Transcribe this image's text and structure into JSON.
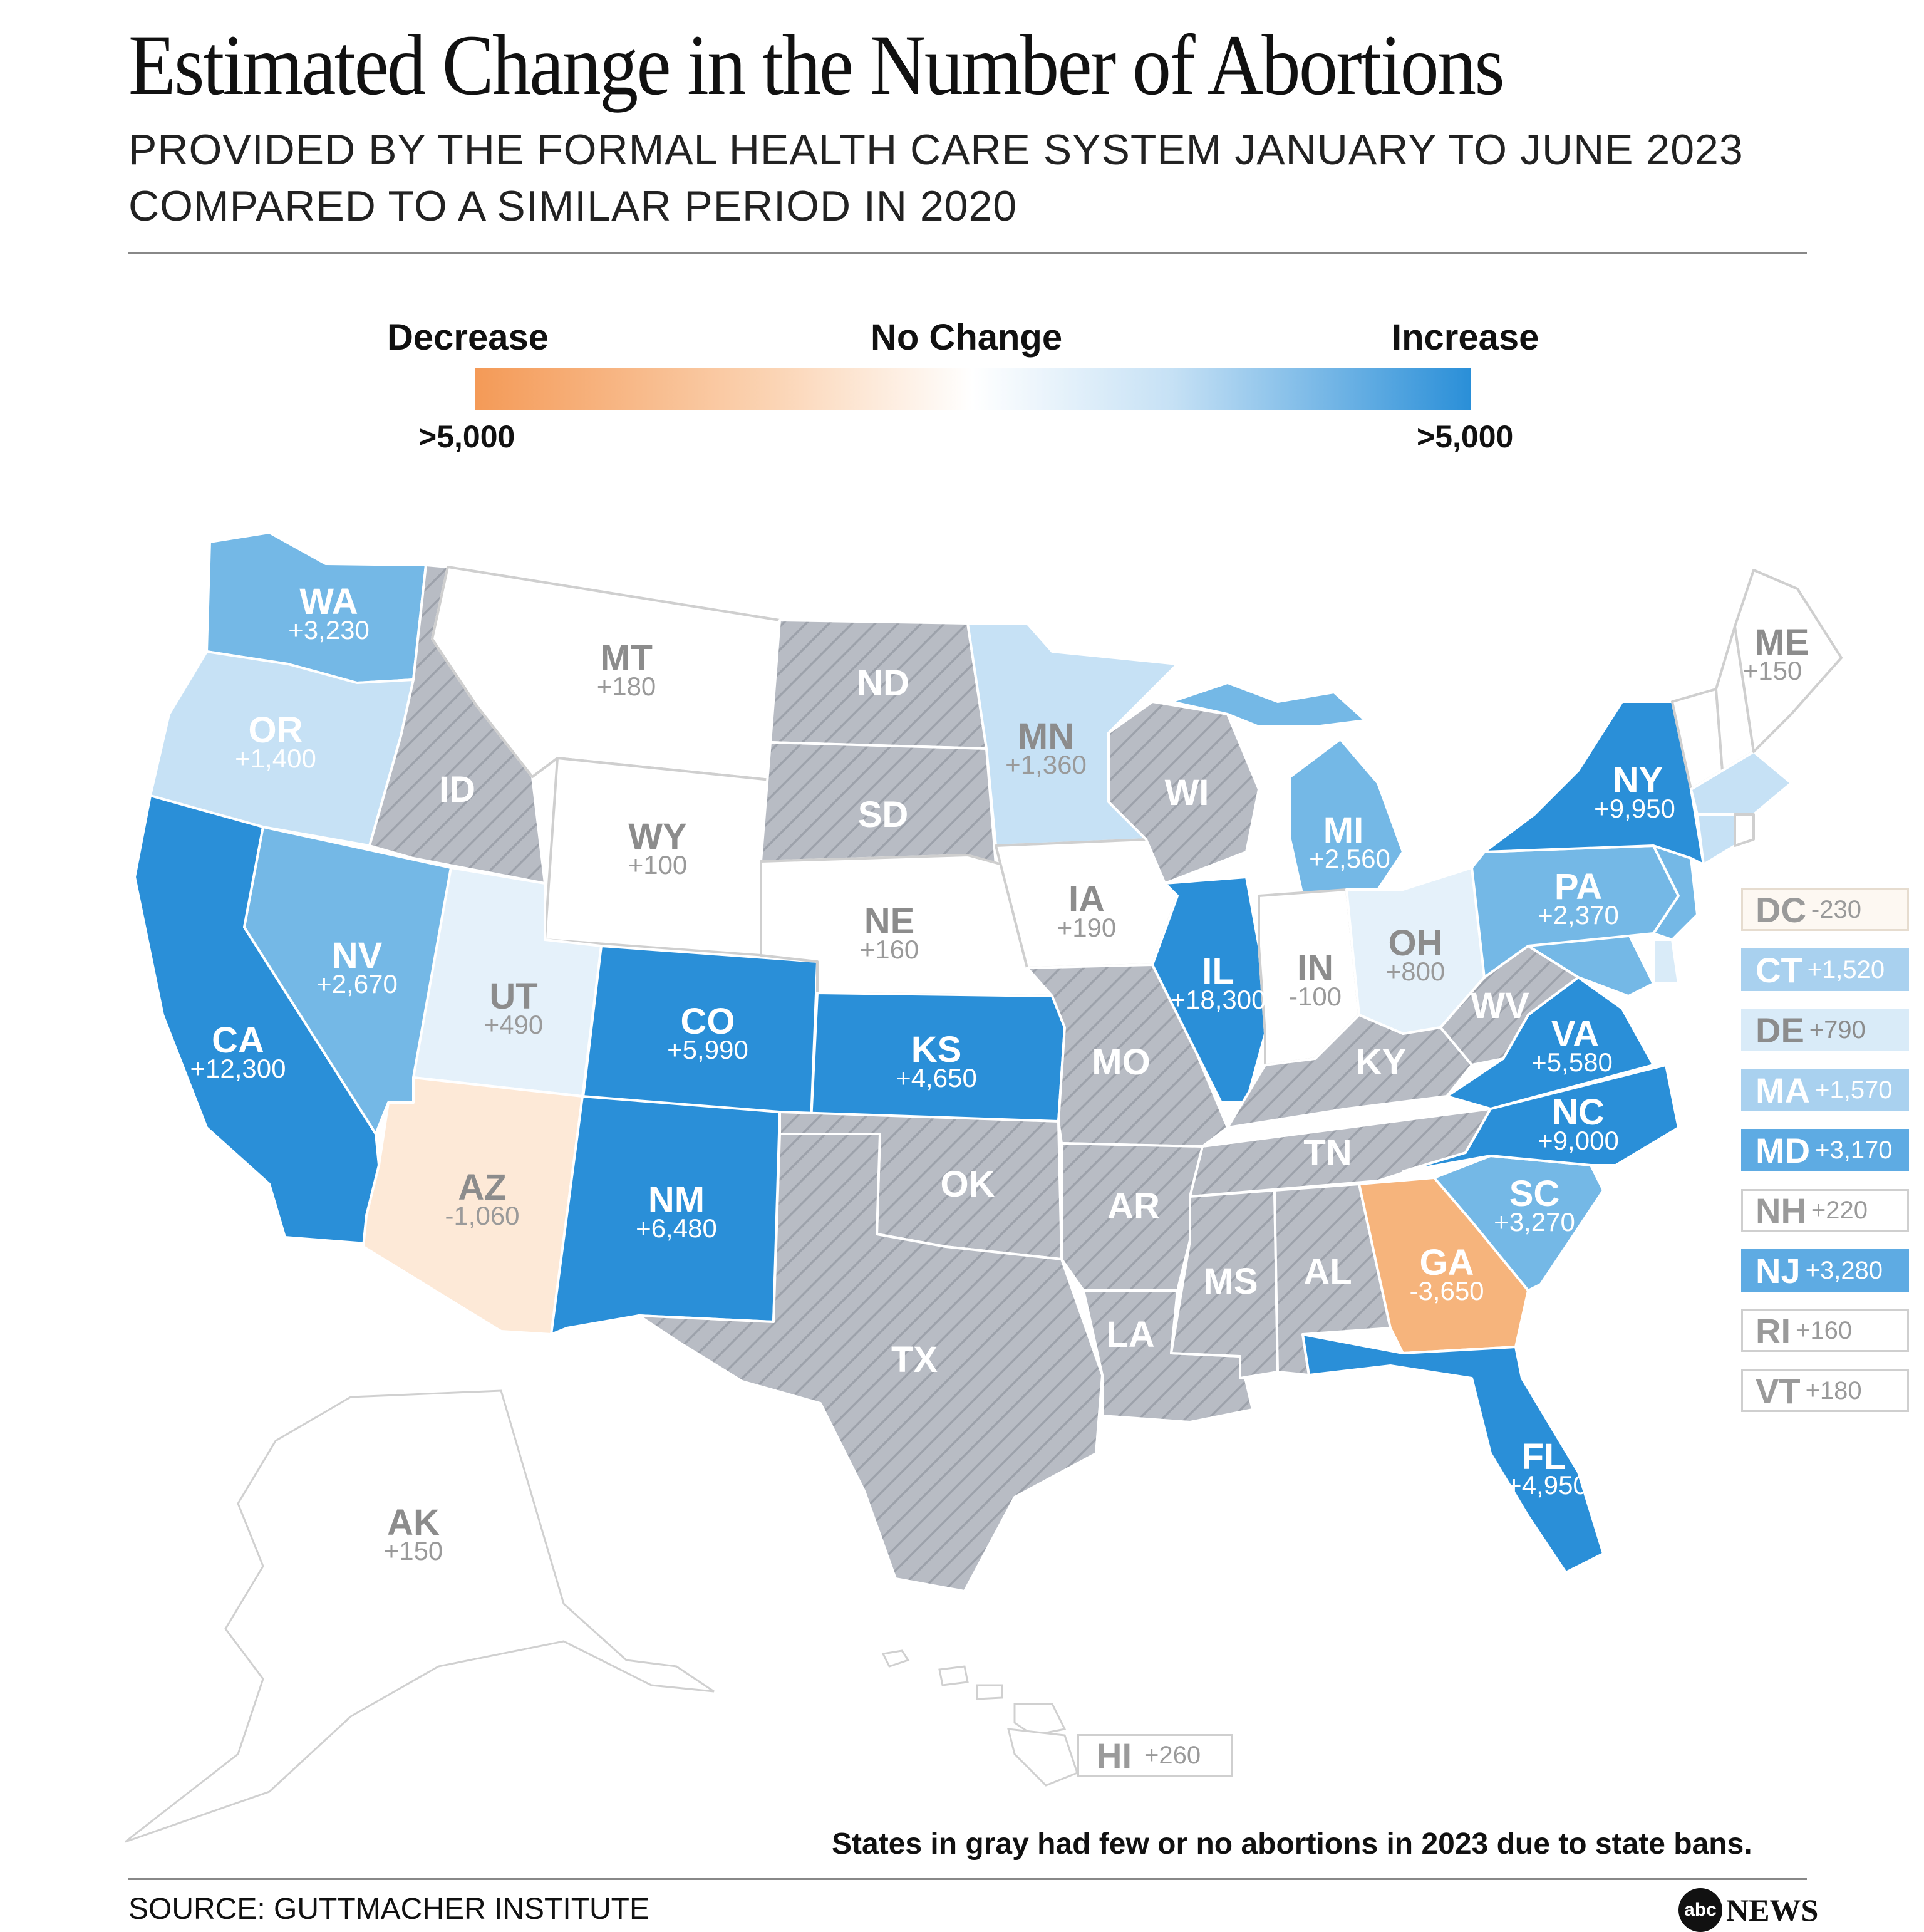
{
  "title": "Estimated Change in the Number of Abortions",
  "subtitle_line1": "PROVIDED BY THE FORMAL HEALTH CARE SYSTEM JANUARY TO JUNE 2023",
  "subtitle_line2": "COMPARED TO A SIMILAR PERIOD IN 2020",
  "legend": {
    "decrease": "Decrease",
    "no_change": "No Change",
    "increase": "Increase",
    "min_label": ">5,000",
    "max_label": ">5,000",
    "color_decrease": "#f49a57",
    "color_none": "#ffffff",
    "color_increase": "#2a8fd8"
  },
  "colors": {
    "ban_gray": "#b8bcc4",
    "ban_hatch": "#9da2ab",
    "blue_dark": "#2a8fd8",
    "blue_mid": "#74b8e6",
    "blue_light": "#c6e1f5",
    "blue_pale": "#e5f1fa",
    "orange": "#f6b47c",
    "peach": "#fde9d7",
    "white": "#ffffff"
  },
  "states": {
    "WA": {
      "abbr": "WA",
      "value": "+3,230"
    },
    "OR": {
      "abbr": "OR",
      "value": "+1,400"
    },
    "CA": {
      "abbr": "CA",
      "value": "+12,300"
    },
    "NV": {
      "abbr": "NV",
      "value": "+2,670"
    },
    "ID": {
      "abbr": "ID",
      "value": ""
    },
    "MT": {
      "abbr": "MT",
      "value": "+180"
    },
    "WY": {
      "abbr": "WY",
      "value": "+100"
    },
    "UT": {
      "abbr": "UT",
      "value": "+490"
    },
    "AZ": {
      "abbr": "AZ",
      "value": "-1,060"
    },
    "CO": {
      "abbr": "CO",
      "value": "+5,990"
    },
    "NM": {
      "abbr": "NM",
      "value": "+6,480"
    },
    "ND": {
      "abbr": "ND",
      "value": ""
    },
    "SD": {
      "abbr": "SD",
      "value": ""
    },
    "NE": {
      "abbr": "NE",
      "value": "+160"
    },
    "KS": {
      "abbr": "KS",
      "value": "+4,650"
    },
    "OK": {
      "abbr": "OK",
      "value": ""
    },
    "TX": {
      "abbr": "TX",
      "value": ""
    },
    "MN": {
      "abbr": "MN",
      "value": "+1,360"
    },
    "IA": {
      "abbr": "IA",
      "value": "+190"
    },
    "MO": {
      "abbr": "MO",
      "value": ""
    },
    "AR": {
      "abbr": "AR",
      "value": ""
    },
    "LA": {
      "abbr": "LA",
      "value": ""
    },
    "WI": {
      "abbr": "WI",
      "value": ""
    },
    "IL": {
      "abbr": "IL",
      "value": "+18,300"
    },
    "MI": {
      "abbr": "MI",
      "value": "+2,560"
    },
    "IN": {
      "abbr": "IN",
      "value": "-100"
    },
    "OH": {
      "abbr": "OH",
      "value": "+800"
    },
    "KY": {
      "abbr": "KY",
      "value": ""
    },
    "TN": {
      "abbr": "TN",
      "value": ""
    },
    "MS": {
      "abbr": "MS",
      "value": ""
    },
    "AL": {
      "abbr": "AL",
      "value": ""
    },
    "GA": {
      "abbr": "GA",
      "value": "-3,650"
    },
    "FL": {
      "abbr": "FL",
      "value": "+4,950"
    },
    "SC": {
      "abbr": "SC",
      "value": "+3,270"
    },
    "NC": {
      "abbr": "NC",
      "value": "+9,000"
    },
    "VA": {
      "abbr": "VA",
      "value": "+5,580"
    },
    "WV": {
      "abbr": "WV",
      "value": ""
    },
    "PA": {
      "abbr": "PA",
      "value": "+2,370"
    },
    "NY": {
      "abbr": "NY",
      "value": "+9,950"
    },
    "ME": {
      "abbr": "ME",
      "value": "+150"
    },
    "AK": {
      "abbr": "AK",
      "value": "+150"
    }
  },
  "side_boxes": [
    {
      "abbr": "DC",
      "value": "-230",
      "fill": "#fdf8f2",
      "border": "#e6dccf",
      "text": "#9a9a9a"
    },
    {
      "abbr": "CT",
      "value": "+1,520",
      "fill": "#a9d1ef",
      "border": "#a9d1ef",
      "text": "#ffffff"
    },
    {
      "abbr": "DE",
      "value": "+790",
      "fill": "#d9ebf8",
      "border": "#d9ebf8",
      "text": "#8c8c8c"
    },
    {
      "abbr": "MA",
      "value": "+1,570",
      "fill": "#a9d1ef",
      "border": "#a9d1ef",
      "text": "#ffffff"
    },
    {
      "abbr": "MD",
      "value": "+3,170",
      "fill": "#5eabe3",
      "border": "#5eabe3",
      "text": "#ffffff"
    },
    {
      "abbr": "NH",
      "value": "+220",
      "fill": "#ffffff",
      "border": "#cfcfcf",
      "text": "#9a9a9a"
    },
    {
      "abbr": "NJ",
      "value": "+3,280",
      "fill": "#5eabe3",
      "border": "#5eabe3",
      "text": "#ffffff"
    },
    {
      "abbr": "RI",
      "value": "+160",
      "fill": "#ffffff",
      "border": "#cfcfcf",
      "text": "#9a9a9a"
    },
    {
      "abbr": "VT",
      "value": "+180",
      "fill": "#ffffff",
      "border": "#cfcfcf",
      "text": "#9a9a9a"
    }
  ],
  "hawaii": {
    "abbr": "HI",
    "value": "+260"
  },
  "note": "States in gray had few or no abortions in 2023 due to state bans.",
  "source": "SOURCE: GUTTMACHER INSTITUTE",
  "logo": {
    "abc": "abc",
    "news": "NEWS"
  }
}
